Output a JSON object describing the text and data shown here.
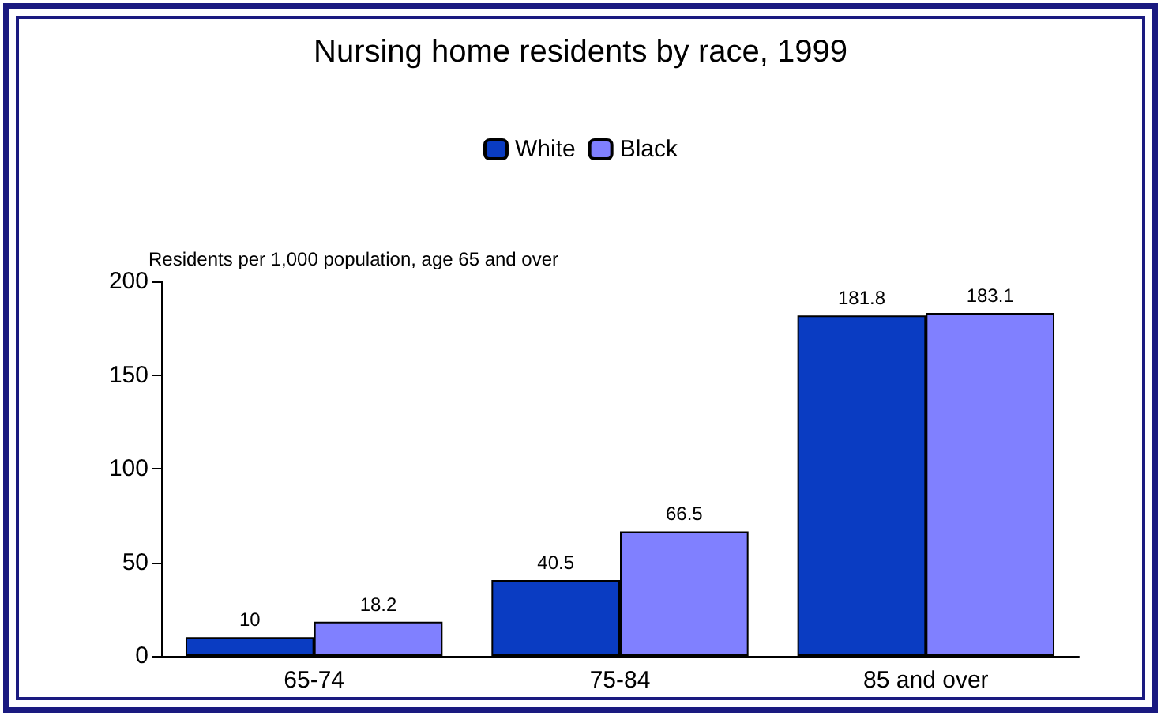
{
  "chart_data": {
    "type": "bar",
    "title": "Nursing home residents by race, 1999",
    "ylabel": "Residents per 1,000 population, age 65 and over",
    "categories": [
      "65-74",
      "75-84",
      "85 and over"
    ],
    "series": [
      {
        "name": "White",
        "color": "#0a3cc2",
        "values": [
          10,
          40.5,
          181.8
        ]
      },
      {
        "name": "Black",
        "color": "#8080ff",
        "values": [
          18.2,
          66.5,
          183.1
        ]
      }
    ],
    "ylim": [
      0,
      200
    ],
    "yticks": [
      0,
      50,
      100,
      150,
      200
    ],
    "grid": false,
    "legend": "top",
    "data_labels": true
  }
}
